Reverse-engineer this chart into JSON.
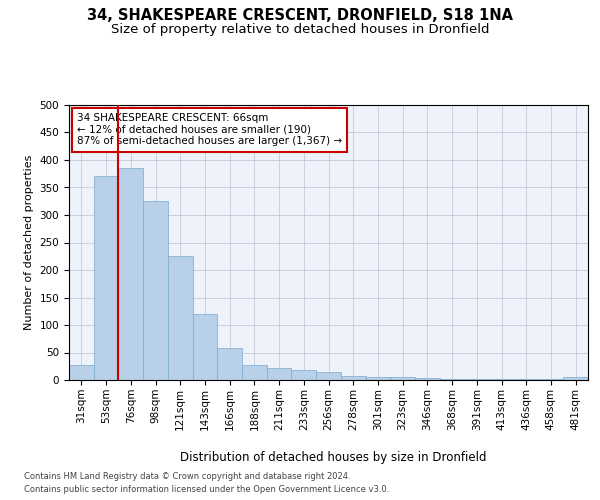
{
  "title_line1": "34, SHAKESPEARE CRESCENT, DRONFIELD, S18 1NA",
  "title_line2": "Size of property relative to detached houses in Dronfield",
  "xlabel": "Distribution of detached houses by size in Dronfield",
  "ylabel": "Number of detached properties",
  "categories": [
    "31sqm",
    "53sqm",
    "76sqm",
    "98sqm",
    "121sqm",
    "143sqm",
    "166sqm",
    "188sqm",
    "211sqm",
    "233sqm",
    "256sqm",
    "278sqm",
    "301sqm",
    "323sqm",
    "346sqm",
    "368sqm",
    "391sqm",
    "413sqm",
    "436sqm",
    "458sqm",
    "481sqm"
  ],
  "values": [
    27,
    370,
    385,
    325,
    225,
    120,
    58,
    27,
    22,
    18,
    14,
    7,
    5,
    5,
    4,
    1,
    1,
    1,
    1,
    1,
    5
  ],
  "bar_color": "#b8d0e8",
  "bar_edge_color": "#7aaace",
  "bar_width": 1.0,
  "redline_x": 1.5,
  "annotation_text": "34 SHAKESPEARE CRESCENT: 66sqm\n← 12% of detached houses are smaller (190)\n87% of semi-detached houses are larger (1,367) →",
  "annotation_box_color": "#ffffff",
  "annotation_box_edge": "#cc0000",
  "annotation_text_size": 7.5,
  "redline_color": "#cc0000",
  "ylim": [
    0,
    500
  ],
  "yticks": [
    0,
    50,
    100,
    150,
    200,
    250,
    300,
    350,
    400,
    450,
    500
  ],
  "grid_color": "#c8c8d8",
  "bg_color": "#eef2fa",
  "footer_line1": "Contains HM Land Registry data © Crown copyright and database right 2024.",
  "footer_line2": "Contains public sector information licensed under the Open Government Licence v3.0.",
  "title_fontsize": 10.5,
  "subtitle_fontsize": 9.5,
  "axis_label_fontsize": 8.5,
  "tick_fontsize": 7.5,
  "ylabel_fontsize": 8
}
